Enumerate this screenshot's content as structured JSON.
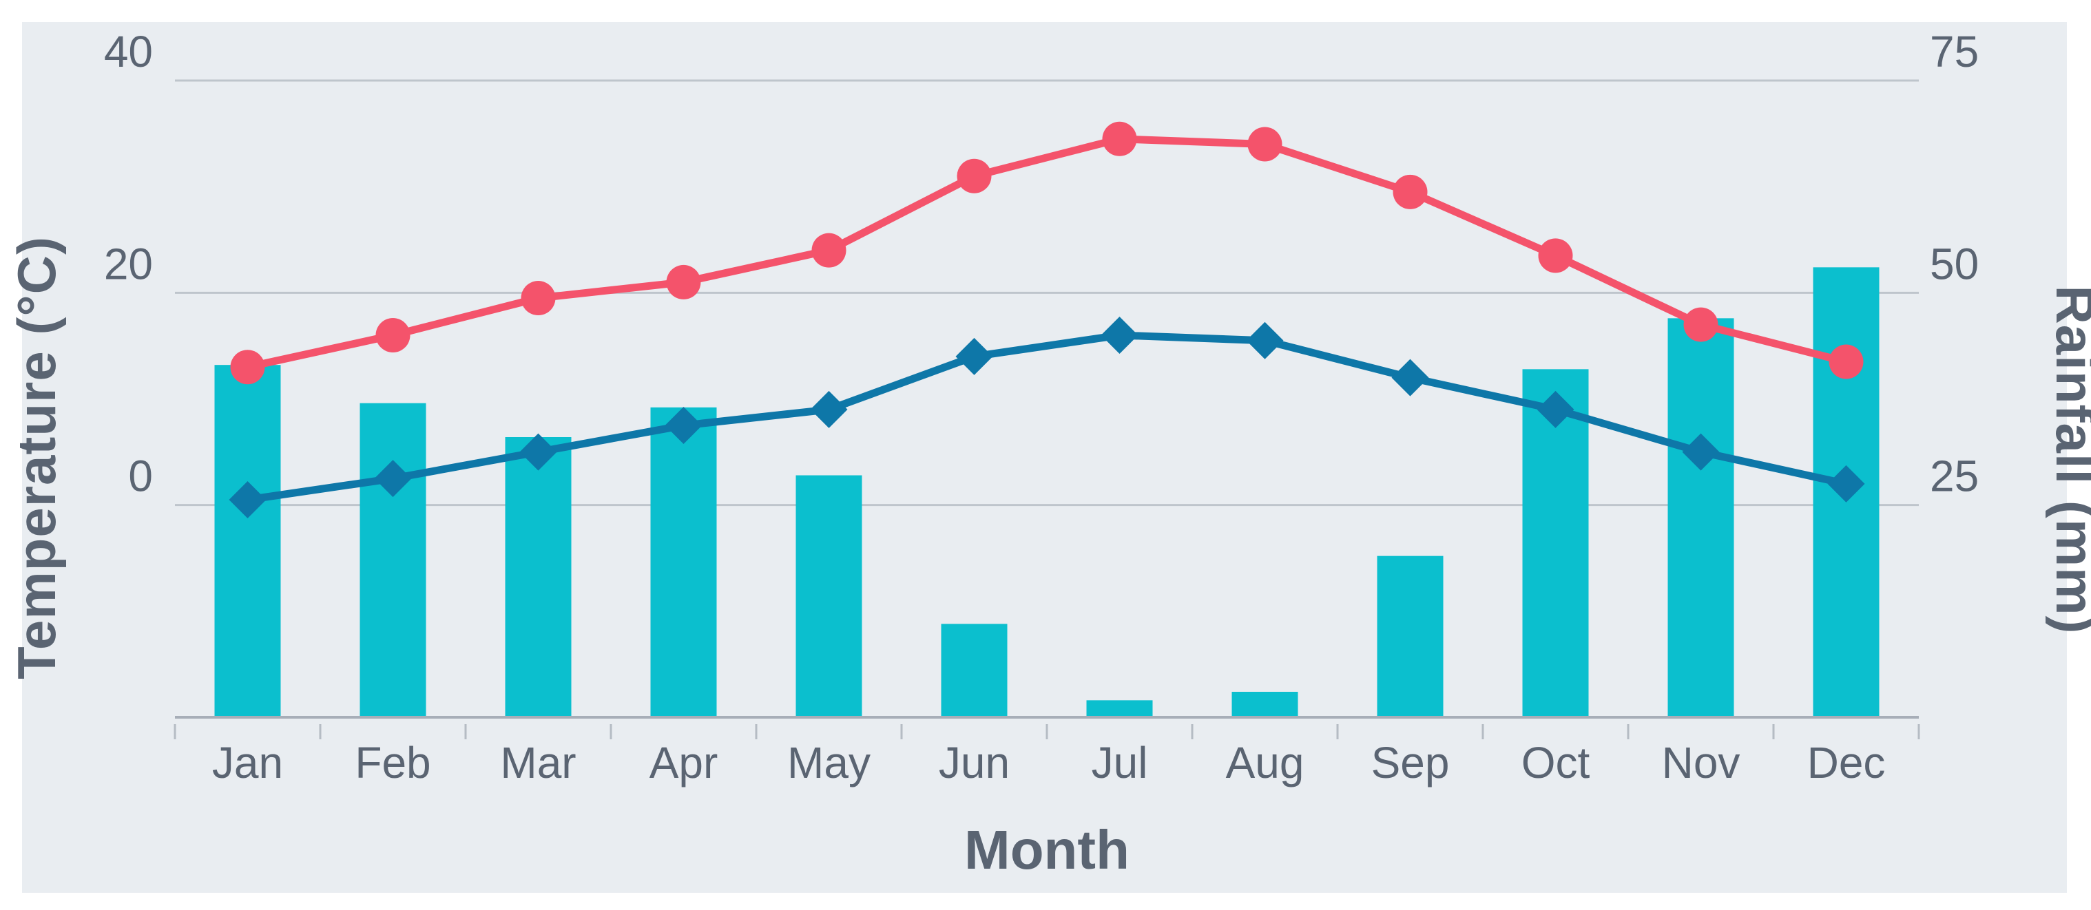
{
  "chart_data": {
    "type": "combo",
    "title": "",
    "categories": [
      "Jan",
      "Feb",
      "Mar",
      "Apr",
      "May",
      "Jun",
      "Jul",
      "Aug",
      "Sep",
      "Oct",
      "Nov",
      "Dec"
    ],
    "series": [
      {
        "name": "rainfall",
        "type": "bar",
        "axis": "right",
        "values": [
          41.5,
          37,
          33,
          36.5,
          28.5,
          11,
          2,
          3,
          19,
          41,
          47,
          53
        ]
      },
      {
        "name": "high-temperature",
        "type": "line",
        "marker": "circle",
        "axis": "left",
        "values": [
          13,
          16,
          19.5,
          21,
          24,
          31,
          34.5,
          34,
          29.5,
          23.5,
          17,
          13.5
        ]
      },
      {
        "name": "low-temperature",
        "type": "line",
        "marker": "diamond",
        "axis": "left",
        "values": [
          0.5,
          2.5,
          5,
          7.5,
          9,
          14,
          16,
          15.5,
          12,
          9,
          5,
          2
        ]
      }
    ],
    "left_axis": {
      "title": "Temperature (°C)",
      "ticks": [
        40,
        20,
        0
      ],
      "min": -20,
      "max": 40
    },
    "right_axis": {
      "title": "Rainfall (mm)",
      "ticks": [
        75,
        50,
        25
      ],
      "min": 0,
      "max": 75
    },
    "x_axis": {
      "title": "Month"
    },
    "grid": true,
    "legend": false
  },
  "colors": {
    "page": "#ffffff",
    "panel": "#e9edf1",
    "bar": "#0bbfce",
    "high_line": "#f4536b",
    "low_line": "#0e77a8",
    "gridline": "#bec5cc",
    "axis_line": "#a7aeb8",
    "tick_mark": "#b5bcc4",
    "text": "#5a6472"
  }
}
